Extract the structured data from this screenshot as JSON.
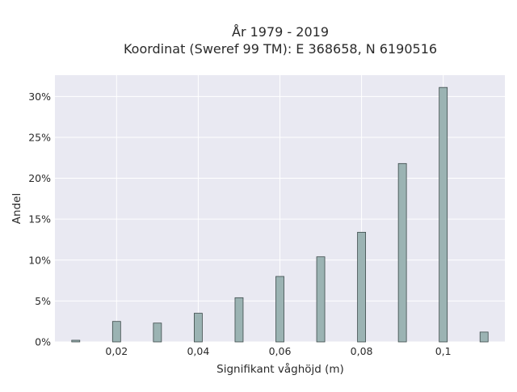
{
  "chart_data": {
    "type": "bar",
    "title_line1": "År 1979 - 2019",
    "title_line2": "Koordinat (Sweref 99 TM): E 368658, N 6190516",
    "xlabel": "Signifikant våghöjd (m)",
    "ylabel": "Andel",
    "x": [
      0.01,
      0.02,
      0.03,
      0.04,
      0.05,
      0.06,
      0.07,
      0.08,
      0.09,
      0.1,
      0.11
    ],
    "values": [
      0.2,
      2.5,
      2.3,
      3.5,
      5.4,
      8.0,
      10.4,
      13.4,
      21.8,
      31.1,
      1.2
    ],
    "xlim": [
      0.0049,
      0.1151
    ],
    "ylim": [
      0,
      32.6
    ],
    "x_ticks": [
      0.02,
      0.04,
      0.06,
      0.08,
      0.1
    ],
    "x_tick_labels": [
      "0,02",
      "0,04",
      "0,06",
      "0,08",
      "0,1"
    ],
    "y_ticks": [
      0,
      5,
      10,
      15,
      20,
      25,
      30
    ],
    "y_tick_labels": [
      "0%",
      "5%",
      "10%",
      "15%",
      "20%",
      "25%",
      "30%"
    ],
    "grid": true,
    "colors": {
      "plot_background": "#e9e9f2",
      "grid": "#ffffff",
      "bar_fill": "#9bb3b3",
      "bar_stroke": "#3c4a4a"
    }
  }
}
